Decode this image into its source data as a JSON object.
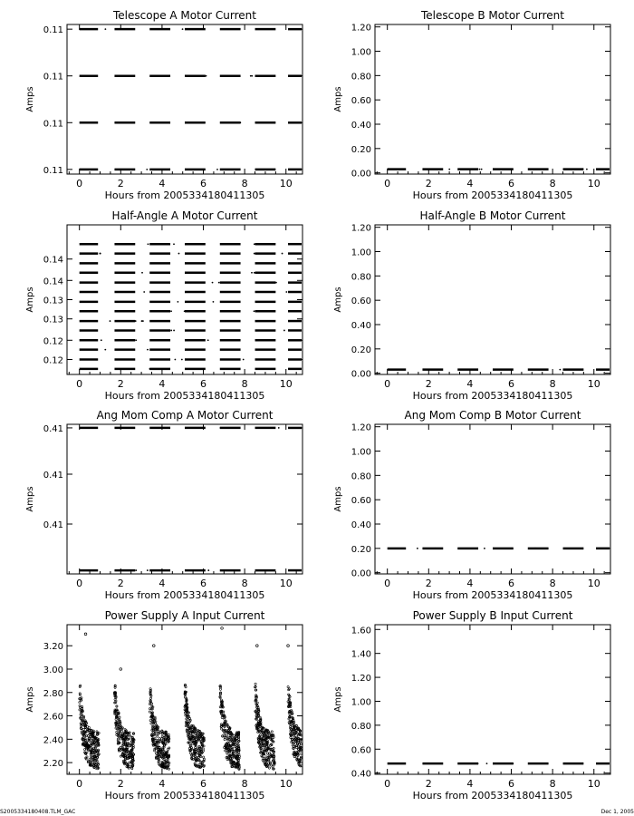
{
  "footer": {
    "left": "S2005334180408.TLM_GAC",
    "right": "Dec 1, 2005"
  },
  "chart_data": [
    {
      "type": "scatter",
      "title": "Telescope A Motor Current",
      "xlabel": "Hours from 2005334180411305",
      "ylabel": "Amps",
      "xlim": [
        -0.6,
        10.8
      ],
      "ylim": [
        0.1094,
        0.1126
      ],
      "xticks": [
        0,
        2,
        4,
        6,
        8,
        10
      ],
      "yticks": [
        {
          "value": 0.1095,
          "label": "0.11"
        },
        {
          "value": 0.1105,
          "label": "0.11"
        },
        {
          "value": 0.1115,
          "label": "0.11"
        },
        {
          "value": 0.1125,
          "label": "0.11"
        }
      ],
      "levels": [
        0.1095,
        0.1105,
        0.1115,
        0.1125
      ]
    },
    {
      "type": "scatter",
      "title": "Telescope B Motor Current",
      "xlabel": "Hours from 2005334180411305",
      "ylabel": "Amps",
      "xlim": [
        -0.6,
        10.8
      ],
      "ylim": [
        -0.01,
        1.22
      ],
      "xticks": [
        0,
        2,
        4,
        6,
        8,
        10
      ],
      "yticks": [
        {
          "value": 0.0,
          "label": "0.00"
        },
        {
          "value": 0.2,
          "label": "0.20"
        },
        {
          "value": 0.4,
          "label": "0.40"
        },
        {
          "value": 0.6,
          "label": "0.60"
        },
        {
          "value": 0.8,
          "label": "0.80"
        },
        {
          "value": 1.0,
          "label": "1.00"
        },
        {
          "value": 1.2,
          "label": "1.20"
        }
      ],
      "levels": [
        0.03
      ]
    },
    {
      "type": "scatter",
      "title": "Half-Angle A Motor Current",
      "xlabel": "Hours from 2005334180411305",
      "ylabel": "Amps",
      "xlim": [
        -0.6,
        10.8
      ],
      "ylim": [
        0.1145,
        0.1495
      ],
      "xticks": [
        0,
        2,
        4,
        6,
        8,
        10
      ],
      "yticks": [
        {
          "value": 0.118,
          "label": "0.12"
        },
        {
          "value": 0.1225,
          "label": "0.12"
        },
        {
          "value": 0.1275,
          "label": "0.13"
        },
        {
          "value": 0.132,
          "label": "0.13"
        },
        {
          "value": 0.1365,
          "label": "0.14"
        },
        {
          "value": 0.1415,
          "label": "0.14"
        }
      ],
      "levels": [
        0.1158,
        0.118,
        0.1203,
        0.1225,
        0.1248,
        0.127,
        0.1293,
        0.1315,
        0.1338,
        0.136,
        0.1383,
        0.1405,
        0.1428,
        0.145
      ]
    },
    {
      "type": "scatter",
      "title": "Half-Angle B Motor Current",
      "xlabel": "Hours from 2005334180411305",
      "ylabel": "Amps",
      "xlim": [
        -0.6,
        10.8
      ],
      "ylim": [
        -0.01,
        1.22
      ],
      "xticks": [
        0,
        2,
        4,
        6,
        8,
        10
      ],
      "yticks": [
        {
          "value": 0.0,
          "label": "0.00"
        },
        {
          "value": 0.2,
          "label": "0.20"
        },
        {
          "value": 0.4,
          "label": "0.40"
        },
        {
          "value": 0.6,
          "label": "0.60"
        },
        {
          "value": 0.8,
          "label": "0.80"
        },
        {
          "value": 1.0,
          "label": "1.00"
        },
        {
          "value": 1.2,
          "label": "1.20"
        }
      ],
      "levels": [
        0.03
      ]
    },
    {
      "type": "scatter",
      "title": "Ang Mom Comp A Motor Current",
      "xlabel": "Hours from 2005334180411305",
      "ylabel": "Amps",
      "xlim": [
        -0.6,
        10.8
      ],
      "ylim": [
        0.4079,
        0.4121
      ],
      "xticks": [
        0,
        2,
        4,
        6,
        8,
        10
      ],
      "yticks": [
        {
          "value": 0.4093,
          "label": "0.41"
        },
        {
          "value": 0.4107,
          "label": "0.41"
        },
        {
          "value": 0.412,
          "label": "0.41"
        }
      ],
      "levels": [
        0.408,
        0.412
      ]
    },
    {
      "type": "scatter",
      "title": "Ang Mom Comp B Motor Current",
      "xlabel": "Hours from 2005334180411305",
      "ylabel": "Amps",
      "xlim": [
        -0.6,
        10.8
      ],
      "ylim": [
        -0.01,
        1.22
      ],
      "xticks": [
        0,
        2,
        4,
        6,
        8,
        10
      ],
      "yticks": [
        {
          "value": 0.0,
          "label": "0.00"
        },
        {
          "value": 0.2,
          "label": "0.20"
        },
        {
          "value": 0.4,
          "label": "0.40"
        },
        {
          "value": 0.6,
          "label": "0.60"
        },
        {
          "value": 0.8,
          "label": "0.80"
        },
        {
          "value": 1.0,
          "label": "1.00"
        },
        {
          "value": 1.2,
          "label": "1.20"
        }
      ],
      "levels": [
        0.2
      ]
    },
    {
      "type": "scatter",
      "title": "Power Supply A Input Current",
      "xlabel": "Hours from 2005334180411305",
      "ylabel": "Amps",
      "xlim": [
        -0.6,
        10.8
      ],
      "ylim": [
        2.1,
        3.38
      ],
      "xticks": [
        0,
        2,
        4,
        6,
        8,
        10
      ],
      "yticks": [
        {
          "value": 2.2,
          "label": "2.20"
        },
        {
          "value": 2.4,
          "label": "2.40"
        },
        {
          "value": 2.6,
          "label": "2.60"
        },
        {
          "value": 2.8,
          "label": "2.80"
        },
        {
          "value": 3.0,
          "label": "3.00"
        },
        {
          "value": 3.2,
          "label": "3.20"
        }
      ],
      "cycle_starts_hours": [
        0.0,
        1.7,
        3.4,
        5.1,
        6.8,
        8.5,
        10.1
      ],
      "baseline_amps": 2.3,
      "peak_amps": 2.8,
      "spikes": [
        [
          0.3,
          3.3
        ],
        [
          2.0,
          3.0
        ],
        [
          3.6,
          3.2
        ],
        [
          6.9,
          3.35
        ],
        [
          8.6,
          3.2
        ],
        [
          10.1,
          3.2
        ]
      ]
    },
    {
      "type": "scatter",
      "title": "Power Supply B Input Current",
      "xlabel": "Hours from 2005334180411305",
      "ylabel": "Amps",
      "xlim": [
        -0.6,
        10.8
      ],
      "ylim": [
        0.39,
        1.64
      ],
      "xticks": [
        0,
        2,
        4,
        6,
        8,
        10
      ],
      "yticks": [
        {
          "value": 0.4,
          "label": "0.40"
        },
        {
          "value": 0.6,
          "label": "0.60"
        },
        {
          "value": 0.8,
          "label": "0.80"
        },
        {
          "value": 1.0,
          "label": "1.00"
        },
        {
          "value": 1.2,
          "label": "1.20"
        },
        {
          "value": 1.4,
          "label": "1.40"
        },
        {
          "value": 1.6,
          "label": "1.60"
        }
      ],
      "levels": [
        0.48
      ]
    }
  ]
}
